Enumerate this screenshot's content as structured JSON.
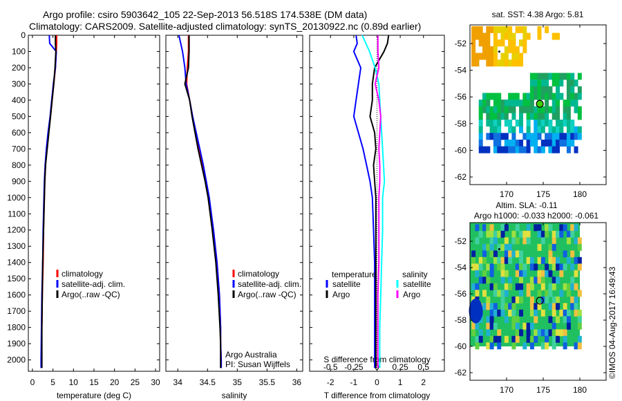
{
  "header": {
    "line1": "Argo profile: csiro 5903642_105 22-Sep-2013 56.518S 174.538E (DM data)",
    "line2": "Climatology: CARS2009. Satellite-adjusted climatology: synTS_20130922.nc (0.89d earlier)"
  },
  "colors": {
    "climatology": "#ff0000",
    "satellite": "#0000ff",
    "argo": "#000000",
    "sal_satellite": "#00ffff",
    "sal_argo": "#ff00ff"
  },
  "chart_data": [
    {
      "type": "line",
      "id": "temperature",
      "xlabel": "temperature (deg C)",
      "xlim": [
        -1,
        31
      ],
      "xticks": [
        "0",
        "5",
        "10",
        "15",
        "20",
        "25",
        "30"
      ],
      "xtickvals": [
        0,
        5,
        10,
        15,
        20,
        25,
        30
      ],
      "ylim": [
        0,
        2050
      ],
      "yticks": [
        "0",
        "100",
        "200",
        "300",
        "400",
        "500",
        "600",
        "700",
        "800",
        "900",
        "1000",
        "1100",
        "1200",
        "1300",
        "1400",
        "1500",
        "1600",
        "1700",
        "1800",
        "1900",
        "2000"
      ],
      "depth": [
        0,
        50,
        100,
        200,
        300,
        400,
        500,
        600,
        700,
        800,
        900,
        1000,
        1200,
        1400,
        1600,
        1800,
        2000,
        2050
      ],
      "legend": [
        "climatology",
        "satellite-adj. clim.",
        "Argo(..raw -QC)"
      ],
      "series": [
        {
          "name": "climatology",
          "color": "#ff0000",
          "values": [
            5.9,
            5.9,
            5.8,
            5.6,
            5.2,
            4.8,
            4.4,
            3.9,
            3.5,
            3.2,
            3.0,
            2.9,
            2.7,
            2.6,
            2.4,
            2.3,
            2.2,
            2.2
          ]
        },
        {
          "name": "satellite-adj. clim.",
          "color": "#0000ff",
          "values": [
            4.1,
            4.2,
            5.8,
            5.6,
            5.1,
            4.7,
            4.3,
            3.8,
            3.4,
            3.1,
            2.9,
            2.8,
            2.6,
            2.5,
            2.3,
            2.2,
            2.1,
            2.1
          ]
        },
        {
          "name": "Argo(..raw -QC)",
          "color": "#000000",
          "values": [
            5.6,
            5.6,
            5.7,
            5.5,
            5.2,
            4.8,
            4.4,
            4.0,
            3.6,
            3.2,
            3.0,
            2.9,
            2.7,
            2.5,
            2.4,
            2.3,
            2.3,
            2.3
          ]
        }
      ]
    },
    {
      "type": "line",
      "id": "salinity",
      "xlabel": "salinity",
      "xlim": [
        33.8,
        36.1
      ],
      "xticks": [
        "34",
        "34.5",
        "35",
        "35.5",
        "36"
      ],
      "xtickvals": [
        34,
        34.5,
        35,
        35.5,
        36
      ],
      "depth": [
        0,
        50,
        100,
        200,
        300,
        400,
        500,
        600,
        700,
        800,
        900,
        1000,
        1200,
        1400,
        1600,
        1800,
        1900,
        2000,
        2050
      ],
      "legend": [
        "climatology",
        "satellite-adj. clim.",
        "Argo(..raw -QC)"
      ],
      "annotation": [
        "Argo Australia",
        "PI: Susan Wijffels"
      ],
      "series": [
        {
          "name": "climatology",
          "color": "#ff0000",
          "values": [
            34.18,
            34.18,
            34.18,
            34.16,
            34.15,
            34.2,
            34.25,
            34.3,
            34.36,
            34.42,
            34.47,
            34.52,
            34.6,
            34.66,
            34.7,
            34.72,
            34.72,
            34.73,
            34.73
          ]
        },
        {
          "name": "satellite-adj. clim.",
          "color": "#0000ff",
          "values": [
            34.02,
            34.05,
            34.08,
            34.12,
            34.14,
            34.2,
            34.25,
            34.31,
            34.37,
            34.43,
            34.48,
            34.53,
            34.6,
            34.66,
            34.7,
            34.72,
            34.72,
            34.73,
            34.73
          ]
        },
        {
          "name": "Argo(..raw -QC)",
          "color": "#000000",
          "values": [
            34.19,
            34.19,
            34.19,
            34.18,
            34.12,
            34.2,
            34.24,
            34.29,
            34.34,
            34.4,
            34.46,
            34.51,
            34.58,
            34.64,
            34.68,
            34.71,
            34.72,
            34.72,
            34.72
          ]
        }
      ]
    },
    {
      "type": "line",
      "id": "differences",
      "xlabel": "T difference from climatology",
      "xlim": [
        -2.9,
        2.9
      ],
      "xticks": [
        "-2",
        "-1",
        "0",
        "1",
        "2"
      ],
      "xtickvals": [
        -2,
        -1,
        0,
        1,
        2
      ],
      "x2label": "S difference from climatology",
      "x2lim": [
        -0.725,
        0.725
      ],
      "x2ticks": [
        "-0.5",
        "-0.25",
        "0",
        "0.25",
        "0.5"
      ],
      "x2tickvals": [
        -0.5,
        -0.25,
        0,
        0.25,
        0.5
      ],
      "legend": {
        "temperature_title": "temperature",
        "salinity_title": "salinity",
        "items": [
          "satellite",
          "Argo",
          "satellite",
          "Argo"
        ]
      },
      "depth": [
        0,
        50,
        100,
        200,
        300,
        400,
        500,
        600,
        700,
        800,
        900,
        1000,
        1200,
        1400,
        1600,
        1800,
        2000,
        2050
      ],
      "series": [
        {
          "name": "T satellite",
          "color": "#0000ff",
          "values": [
            -0.9,
            -0.85,
            -1.0,
            -0.7,
            -0.8,
            -0.9,
            -1.0,
            -0.8,
            -0.6,
            -0.45,
            -0.3,
            -0.2,
            -0.15,
            -0.1,
            -0.1,
            -0.1,
            -0.1,
            -0.1
          ]
        },
        {
          "name": "T Argo",
          "color": "#000000",
          "values": [
            0.5,
            0.45,
            0.3,
            -0.1,
            -0.2,
            -0.2,
            -0.3,
            -0.1,
            -0.05,
            -0.15,
            -0.1,
            -0.05,
            -0.05,
            -0.05,
            -0.05,
            -0.05,
            -0.05,
            -0.05
          ]
        },
        {
          "name": "S satellite",
          "color": "#00ffff",
          "values": [
            -0.16,
            -0.12,
            -0.08,
            -0.02,
            0.02,
            0.03,
            0.04,
            0.05,
            0.06,
            0.07,
            0.08,
            0.06,
            0.06,
            0.05,
            0.04,
            0.03,
            0.03,
            0.03
          ]
        },
        {
          "name": "S Argo",
          "color": "#ff00ff",
          "values": [
            0.01,
            0.01,
            0.01,
            0.02,
            -0.02,
            0.02,
            0.04,
            0.03,
            0.02,
            0.03,
            0.03,
            0.02,
            0.02,
            0.02,
            0.01,
            0.01,
            0.01,
            0.01
          ]
        }
      ]
    }
  ],
  "maps": {
    "sst": {
      "title": "sat. SST: 4.38 Argo: 5.81",
      "xticks": [
        "170",
        "175",
        "180"
      ],
      "yticks": [
        "-52",
        "-54",
        "-56",
        "-58",
        "-60",
        "-62"
      ]
    },
    "sla": {
      "title1": "Altim. SLA: -0.11",
      "title2": "Argo h1000: -0.033 h2000: -0.061",
      "xticks": [
        "170",
        "175",
        "180"
      ],
      "yticks": [
        "-52",
        "-54",
        "-56",
        "-58",
        "-60",
        "-62"
      ]
    },
    "float_position": {
      "lon": 174.538,
      "lat": -56.518
    }
  },
  "footer": {
    "stamp": "©IMOS 04-Aug-2017 16:49:43"
  }
}
